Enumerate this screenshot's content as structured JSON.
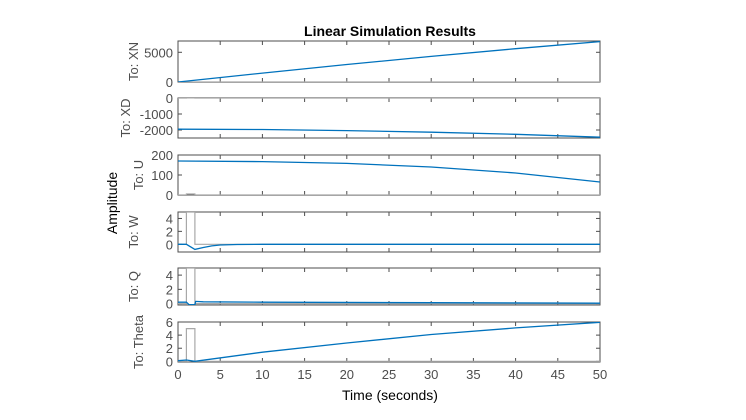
{
  "chart_data": {
    "type": "line",
    "title": "Linear Simulation Results",
    "xlabel": "Time (seconds)",
    "ylabel": "Amplitude",
    "xlim": [
      0,
      50
    ],
    "xticks": [
      0,
      5,
      10,
      15,
      20,
      25,
      30,
      35,
      40,
      45,
      50
    ],
    "grid": false,
    "colors": {
      "response": "#0072bd",
      "input": "#a8a8a8",
      "axes": "#4d4d4d"
    },
    "input": {
      "t": [
        0,
        1,
        1,
        2,
        2,
        50
      ],
      "values": [
        0,
        0,
        5,
        5,
        0,
        0
      ]
    },
    "panels": [
      {
        "label": "To: XN",
        "ylim": [
          0,
          6900
        ],
        "yticks": [
          0,
          5000
        ],
        "response": {
          "t": [
            0,
            10,
            20,
            30,
            40,
            50
          ],
          "values": [
            0,
            1500,
            2950,
            4300,
            5600,
            6800
          ]
        }
      },
      {
        "label": "To: XD",
        "ylim": [
          -2500,
          0
        ],
        "yticks": [
          -2000,
          -1000,
          0
        ],
        "response": {
          "t": [
            0,
            10,
            20,
            30,
            40,
            50
          ],
          "values": [
            -1950,
            -1970,
            -2040,
            -2140,
            -2270,
            -2450
          ]
        }
      },
      {
        "label": "To: U",
        "ylim": [
          0,
          200
        ],
        "yticks": [
          0,
          100,
          200
        ],
        "response": {
          "t": [
            0,
            10,
            20,
            30,
            40,
            50
          ],
          "values": [
            170,
            167,
            158,
            140,
            110,
            65
          ]
        }
      },
      {
        "label": "To: W",
        "ylim": [
          -1.2,
          5
        ],
        "yticks": [
          0,
          2,
          4
        ],
        "response": {
          "t": [
            0,
            1,
            2,
            3,
            4,
            5,
            7,
            10,
            50
          ],
          "values": [
            0,
            0,
            -0.8,
            -0.5,
            -0.25,
            -0.12,
            -0.03,
            0,
            0
          ]
        }
      },
      {
        "label": "To: Q",
        "ylim": [
          -0.2,
          5
        ],
        "yticks": [
          0,
          2,
          4
        ],
        "response": {
          "t": [
            0,
            1,
            1.3,
            2,
            2.1,
            3,
            10,
            30,
            50
          ],
          "values": [
            0.2,
            0.2,
            -0.15,
            -0.15,
            0.3,
            0.25,
            0.2,
            0.12,
            0.05
          ]
        }
      },
      {
        "label": "To: Theta",
        "ylim": [
          -0.1,
          6
        ],
        "yticks": [
          0,
          2,
          4,
          6
        ],
        "response": {
          "t": [
            0,
            1,
            2,
            10,
            20,
            30,
            40,
            50
          ],
          "values": [
            0.1,
            0.2,
            0,
            1.4,
            2.8,
            4.1,
            5.1,
            5.95
          ]
        }
      }
    ]
  }
}
